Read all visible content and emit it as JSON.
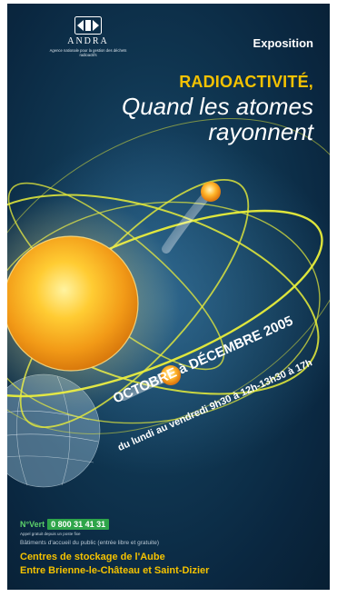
{
  "logo": {
    "name": "ANDRA",
    "tagline": "Agence nationale pour la gestion des déchets radioactifs"
  },
  "header": {
    "kicker": "Exposition",
    "title": "RADIOACTIVITÉ,",
    "subtitle_line1": "Quand les atomes",
    "subtitle_line2": "rayonnent"
  },
  "schedule": {
    "dates": "OCTOBRE à DÉCEMBRE 2005",
    "hours": "du lundi au vendredi 9h30 à 12h-13h30 à 17h"
  },
  "contact": {
    "prefix": "N°Vert",
    "number": "0 800 31 41 31",
    "note": "Appel gratuit depuis un poste fixe",
    "visit_info": "Bâtiments d'accueil du public (entrée libre et gratuite)"
  },
  "locations": {
    "line1": "Centres de stockage de l'Aube",
    "line2": "Entre Brienne-le-Château et Saint-Dizier"
  },
  "colors": {
    "background": "#0f3550",
    "accent_yellow": "#f5c200",
    "green": "#2fa54a",
    "sun": "#f2a81d"
  }
}
